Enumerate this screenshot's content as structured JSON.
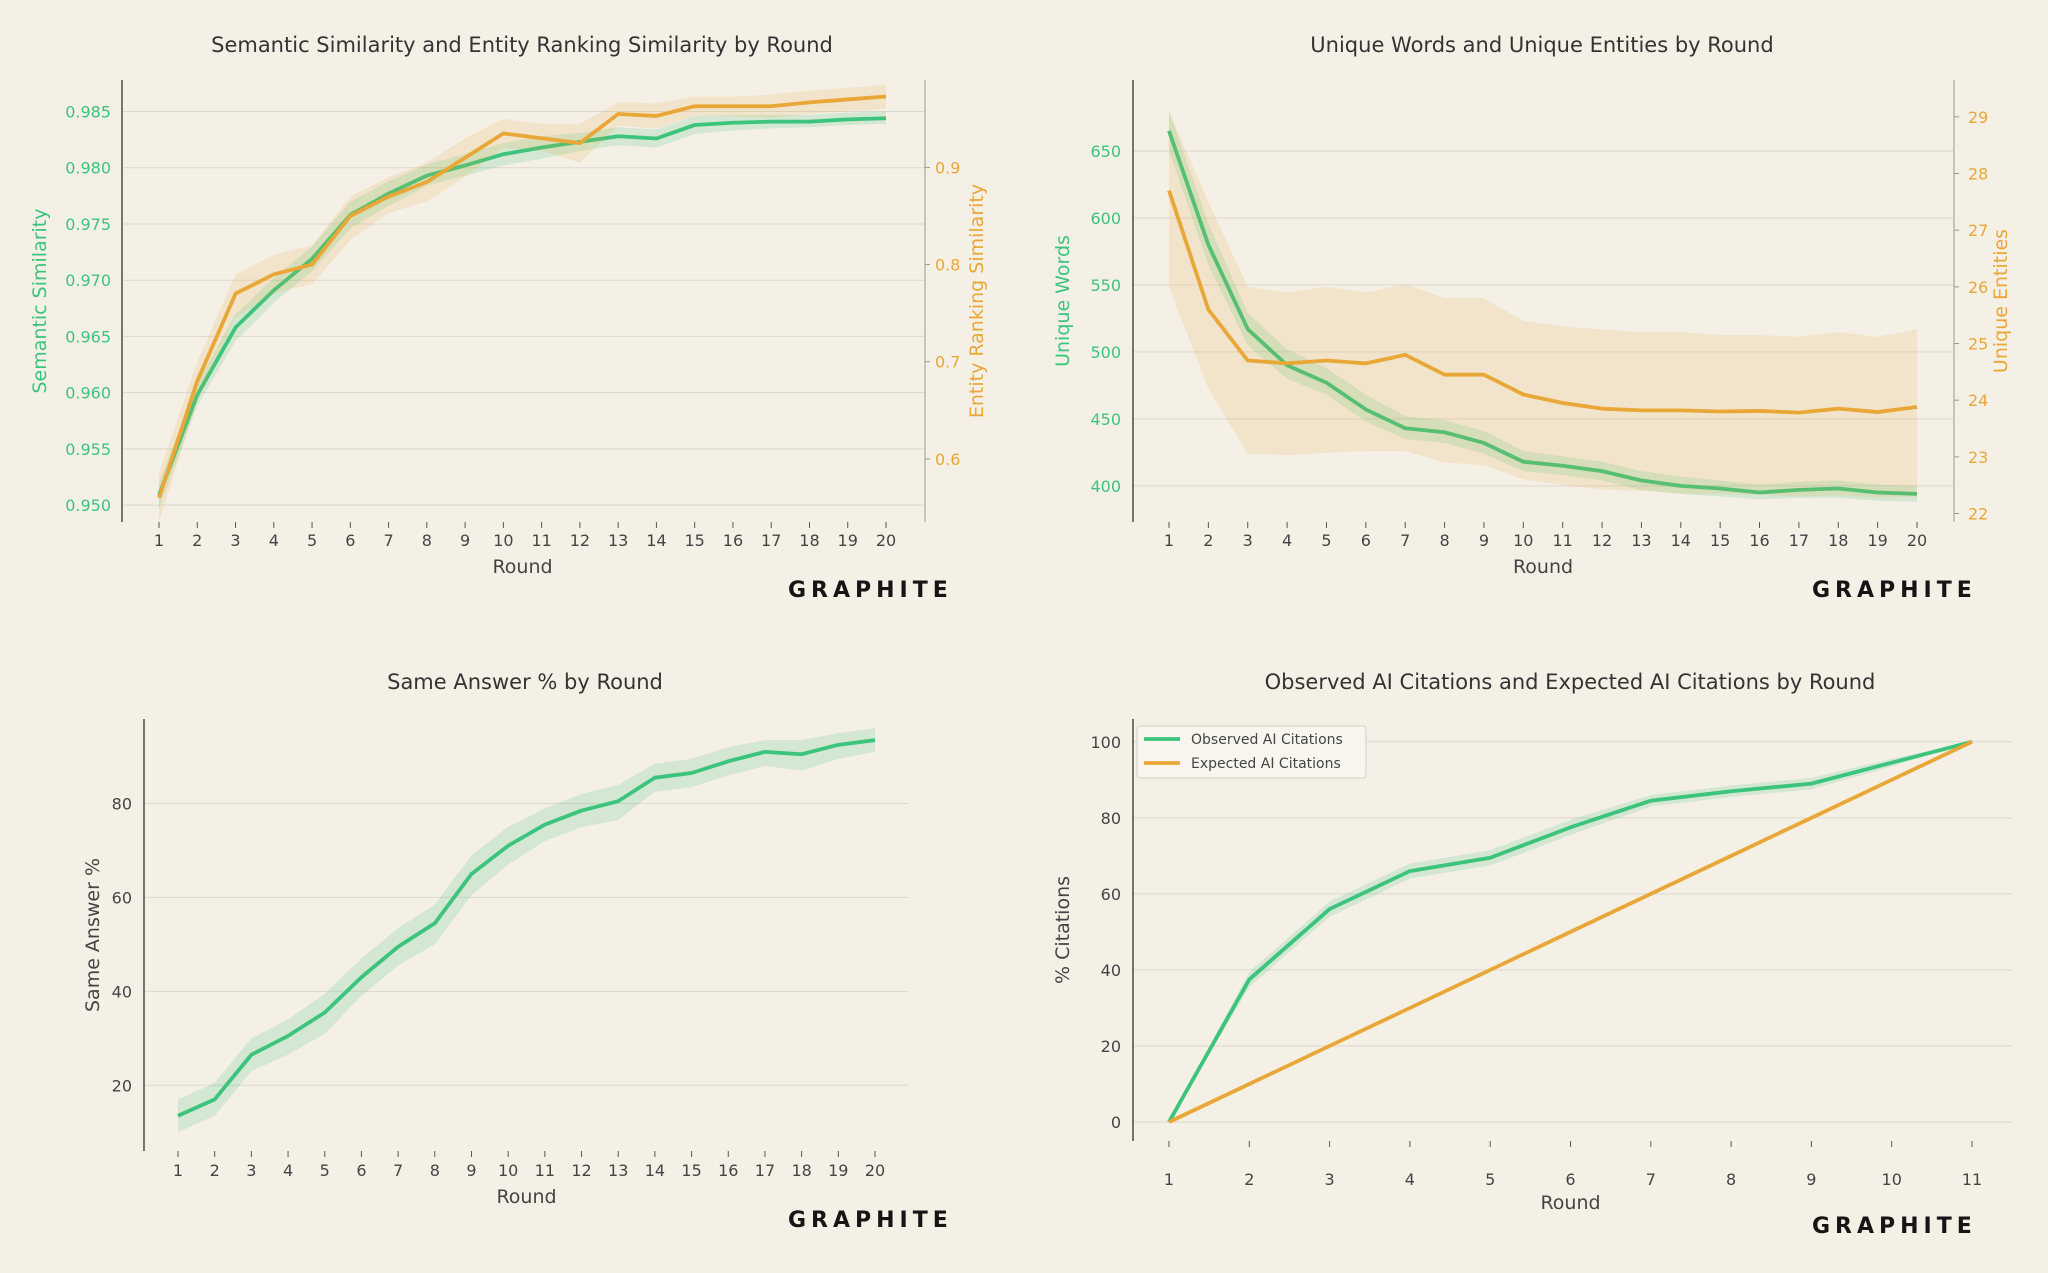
{
  "colors": {
    "green": "#3cc47c",
    "orange": "#e8a737",
    "green_band": "#3cc47c",
    "orange_band": "#e8a737",
    "text": "#444444",
    "grid": "#dcd8ce",
    "background": "#f5f0e6"
  },
  "brand": {
    "logo_text": "GRAPHITE"
  },
  "chart_data": [
    {
      "type": "line",
      "title": "Semantic Similarity and Entity Ranking Similarity by Round",
      "xlabel": "Round",
      "ylabel": "Semantic Similarity",
      "ylabel_right": "Entity Ranking Similarity",
      "x": [
        1,
        2,
        3,
        4,
        5,
        6,
        7,
        8,
        9,
        10,
        11,
        12,
        13,
        14,
        15,
        16,
        17,
        18,
        19,
        20
      ],
      "ylim": [
        0.9485,
        0.9878
      ],
      "ylim_right": [
        0.535,
        0.99
      ],
      "yticks": [
        "0.950",
        "0.955",
        "0.960",
        "0.965",
        "0.970",
        "0.975",
        "0.980",
        "0.985"
      ],
      "yticks_right": [
        "0.6",
        "0.7",
        "0.8",
        "0.9"
      ],
      "grid": true,
      "series": [
        {
          "name": "Semantic Similarity",
          "axis": "left",
          "values": [
            0.9509,
            0.9598,
            0.9658,
            0.9691,
            0.9719,
            0.9758,
            0.9777,
            0.9793,
            0.9802,
            0.9812,
            0.9818,
            0.9823,
            0.9828,
            0.9826,
            0.9838,
            0.984,
            0.9841,
            0.9841,
            0.9843,
            0.9844
          ],
          "lower": [
            0.9497,
            0.9588,
            0.9646,
            0.968,
            0.9708,
            0.9746,
            0.9766,
            0.9784,
            0.9793,
            0.9802,
            0.9808,
            0.9815,
            0.982,
            0.9818,
            0.983,
            0.9833,
            0.9835,
            0.9836,
            0.9838,
            0.9839
          ],
          "upper": [
            0.952,
            0.9608,
            0.967,
            0.9702,
            0.973,
            0.977,
            0.9788,
            0.9803,
            0.9812,
            0.9822,
            0.9828,
            0.9831,
            0.9836,
            0.9834,
            0.9846,
            0.9847,
            0.9847,
            0.9847,
            0.9849,
            0.985
          ]
        },
        {
          "name": "Entity Ranking Similarity",
          "axis": "right",
          "values": [
            0.56,
            0.68,
            0.77,
            0.79,
            0.8,
            0.85,
            0.87,
            0.885,
            0.91,
            0.935,
            0.93,
            0.925,
            0.955,
            0.953,
            0.963,
            0.963,
            0.963,
            0.967,
            0.97,
            0.973
          ],
          "lower": [
            0.535,
            0.66,
            0.745,
            0.77,
            0.78,
            0.825,
            0.853,
            0.865,
            0.89,
            0.92,
            0.917,
            0.905,
            0.943,
            0.94,
            0.953,
            0.953,
            0.951,
            0.955,
            0.958,
            0.96
          ],
          "upper": [
            0.585,
            0.7,
            0.79,
            0.81,
            0.82,
            0.87,
            0.89,
            0.905,
            0.93,
            0.95,
            0.945,
            0.945,
            0.967,
            0.966,
            0.973,
            0.973,
            0.975,
            0.979,
            0.982,
            0.985
          ]
        }
      ]
    },
    {
      "type": "line",
      "title": "Unique Words and Unique Entities by Round",
      "xlabel": "Round",
      "ylabel": "Unique Words",
      "ylabel_right": "Unique Entities",
      "x": [
        1,
        2,
        3,
        4,
        5,
        6,
        7,
        8,
        9,
        10,
        11,
        12,
        13,
        14,
        15,
        16,
        17,
        18,
        19,
        20
      ],
      "ylim": [
        373,
        703
      ],
      "ylim_right": [
        21.85,
        29.65
      ],
      "yticks": [
        "400",
        "450",
        "500",
        "550",
        "600",
        "650"
      ],
      "yticks_right": [
        "22",
        "23",
        "24",
        "25",
        "26",
        "27",
        "28",
        "29"
      ],
      "grid": true,
      "series": [
        {
          "name": "Unique Words",
          "axis": "left",
          "values": [
            665,
            580,
            517,
            490,
            477,
            457,
            443,
            440,
            432,
            418,
            415,
            411,
            404,
            400,
            398,
            395,
            397,
            398,
            395,
            394
          ],
          "lower": [
            650,
            565,
            505,
            480,
            468,
            448,
            435,
            432,
            424,
            411,
            408,
            404,
            397,
            394,
            392,
            390,
            391,
            391,
            389,
            388
          ],
          "upper": [
            680,
            596,
            529,
            502,
            488,
            468,
            452,
            449,
            441,
            426,
            422,
            418,
            411,
            407,
            404,
            401,
            403,
            404,
            401,
            400
          ]
        },
        {
          "name": "Unique Entities",
          "axis": "right",
          "values": [
            27.7,
            25.6,
            24.7,
            24.65,
            24.7,
            24.65,
            24.8,
            24.45,
            24.45,
            24.1,
            23.95,
            23.85,
            23.82,
            23.82,
            23.8,
            23.81,
            23.78,
            23.85,
            23.79,
            23.88
          ],
          "lower": [
            26.0,
            24.2,
            23.05,
            23.03,
            23.07,
            23.1,
            23.1,
            22.9,
            22.85,
            22.6,
            22.5,
            22.42,
            22.4,
            22.35,
            22.35,
            22.33,
            22.3,
            22.32,
            22.28,
            22.3
          ],
          "upper": [
            29.1,
            27.5,
            26.0,
            25.9,
            26.0,
            25.9,
            26.05,
            25.8,
            25.8,
            25.4,
            25.3,
            25.25,
            25.2,
            25.2,
            25.15,
            25.15,
            25.12,
            25.2,
            25.12,
            25.25
          ]
        }
      ]
    },
    {
      "type": "line",
      "title": "Same Answer % by Round",
      "xlabel": "Round",
      "ylabel": "Same Answer %",
      "x": [
        1,
        2,
        3,
        4,
        5,
        6,
        7,
        8,
        9,
        10,
        11,
        12,
        13,
        14,
        15,
        16,
        17,
        18,
        19,
        20
      ],
      "ylim": [
        6,
        98
      ],
      "yticks": [
        "20",
        "40",
        "60",
        "80"
      ],
      "grid": true,
      "series": [
        {
          "name": "Same Answer %",
          "axis": "left",
          "values": [
            13.5,
            17,
            26.5,
            30.5,
            35.5,
            43,
            49.5,
            54.5,
            65,
            71,
            75.5,
            78.5,
            80.5,
            85.5,
            86.5,
            89,
            91,
            90.5,
            92.5,
            93.5
          ],
          "lower": [
            10,
            13.5,
            23,
            26.5,
            31,
            39,
            45.5,
            50,
            60.5,
            67,
            72,
            75,
            76.5,
            82.5,
            83.5,
            86,
            88,
            87,
            89.5,
            91
          ],
          "upper": [
            17,
            20.5,
            30,
            34,
            39.5,
            47,
            53.5,
            58.5,
            69,
            75,
            79,
            82,
            84,
            88.5,
            89.5,
            92,
            93.5,
            93.5,
            95,
            96
          ]
        }
      ]
    },
    {
      "type": "line",
      "title": "Observed AI Citations and Expected AI Citations by Round",
      "xlabel": "Round",
      "ylabel": "% Citations",
      "x": [
        1,
        2,
        3,
        4,
        5,
        6,
        7,
        8,
        9,
        10,
        11
      ],
      "ylim": [
        -5,
        106
      ],
      "yticks": [
        "0",
        "20",
        "40",
        "60",
        "80",
        "100"
      ],
      "grid": true,
      "legend": "top-left",
      "series": [
        {
          "name": "Observed AI Citations",
          "axis": "left",
          "values": [
            0,
            37.5,
            56,
            66,
            69.5,
            77.5,
            84.5,
            87,
            89,
            94.5,
            100
          ],
          "lower": [
            0,
            35.5,
            54,
            64,
            67.5,
            75.5,
            83,
            85.5,
            87.5,
            93.5,
            100
          ],
          "upper": [
            0,
            39.5,
            58,
            68,
            71.5,
            79.5,
            86,
            88.5,
            90.5,
            95.5,
            100
          ]
        },
        {
          "name": "Expected AI Citations",
          "axis": "left",
          "values": [
            0,
            10,
            20,
            30,
            40,
            50,
            60,
            70,
            80,
            90,
            100
          ]
        }
      ]
    }
  ]
}
